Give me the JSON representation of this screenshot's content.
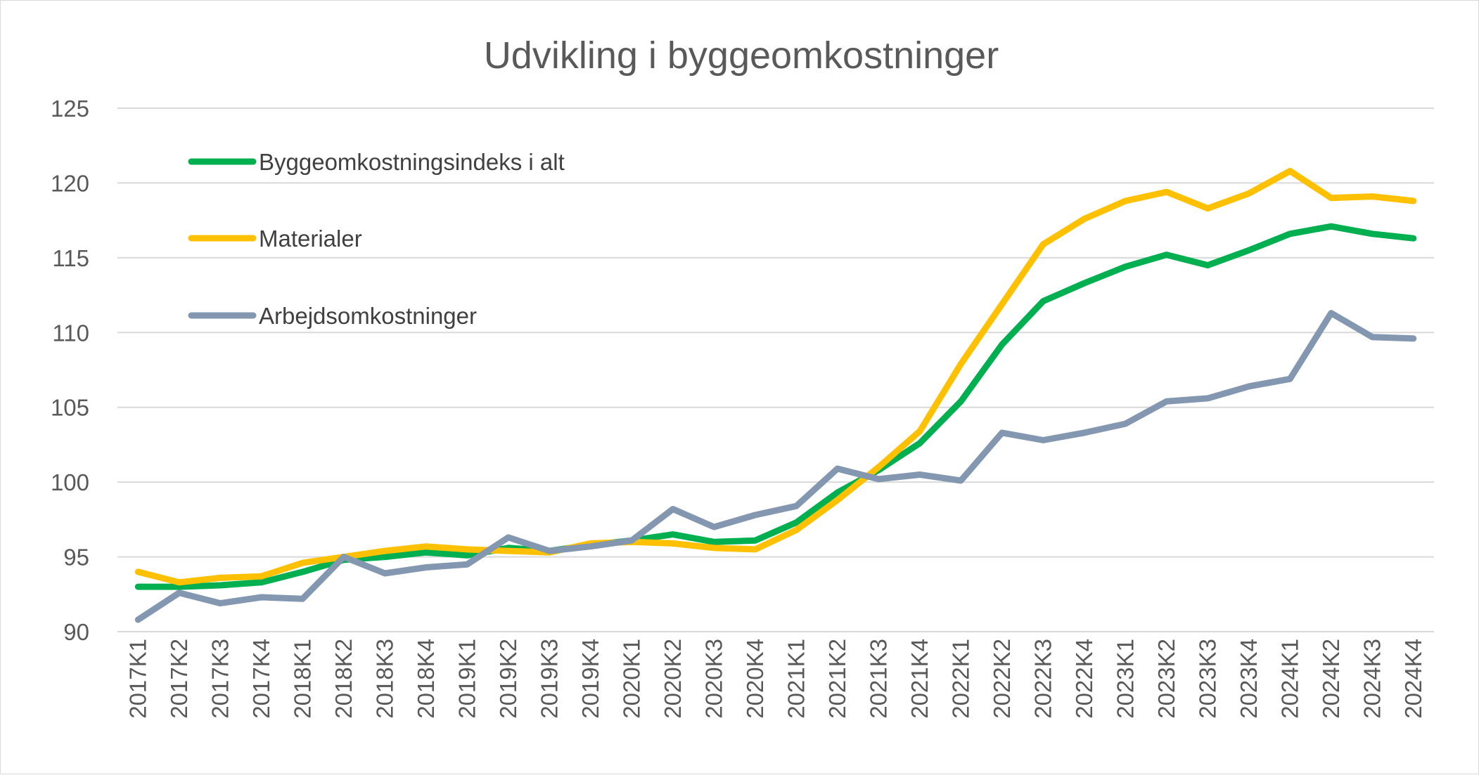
{
  "chart_data": {
    "type": "line",
    "title": "Udvikling i byggeomkostninger",
    "xlabel": "",
    "ylabel": "",
    "ylim": [
      90,
      125
    ],
    "yticks": [
      90,
      95,
      100,
      105,
      110,
      115,
      120,
      125
    ],
    "grid": true,
    "legend_position": "top-left inside",
    "categories": [
      "2017K1",
      "2017K2",
      "2017K3",
      "2017K4",
      "2018K1",
      "2018K2",
      "2018K3",
      "2018K4",
      "2019K1",
      "2019K2",
      "2019K3",
      "2019K4",
      "2020K1",
      "2020K2",
      "2020K3",
      "2020K4",
      "2021K1",
      "2021K2",
      "2021K3",
      "2021K4",
      "2022K1",
      "2022K2",
      "2022K3",
      "2022K4",
      "2023K1",
      "2023K2",
      "2023K3",
      "2023K4",
      "2024K1",
      "2024K2",
      "2024K3",
      "2024K4"
    ],
    "series": [
      {
        "name": "Byggeomkostningsindeks i alt",
        "color": "#00b050",
        "values": [
          93.0,
          93.0,
          93.1,
          93.3,
          94.0,
          94.8,
          95.0,
          95.3,
          95.1,
          95.6,
          95.4,
          95.8,
          96.1,
          96.5,
          96.0,
          96.1,
          97.3,
          99.3,
          100.8,
          102.6,
          105.4,
          109.2,
          112.1,
          113.3,
          114.4,
          115.2,
          114.5,
          115.5,
          116.6,
          117.1,
          116.6,
          116.3
        ]
      },
      {
        "name": "Materialer",
        "color": "#ffc000",
        "values": [
          94.0,
          93.3,
          93.6,
          93.7,
          94.6,
          95.0,
          95.4,
          95.7,
          95.5,
          95.4,
          95.3,
          95.9,
          96.0,
          95.9,
          95.6,
          95.5,
          96.8,
          98.8,
          101.0,
          103.4,
          107.9,
          111.9,
          115.9,
          117.6,
          118.8,
          119.4,
          118.3,
          119.3,
          120.8,
          119.0,
          119.1,
          118.8
        ]
      },
      {
        "name": "Arbejdsomkostninger",
        "color": "#8497b0",
        "values": [
          90.8,
          92.6,
          91.9,
          92.3,
          92.2,
          95.0,
          93.9,
          94.3,
          94.5,
          96.3,
          95.4,
          95.7,
          96.1,
          98.2,
          97.0,
          97.8,
          98.4,
          100.9,
          100.2,
          100.5,
          100.1,
          103.3,
          102.8,
          103.3,
          103.9,
          105.4,
          105.6,
          106.4,
          106.9,
          111.3,
          109.7,
          109.6
        ]
      }
    ]
  }
}
